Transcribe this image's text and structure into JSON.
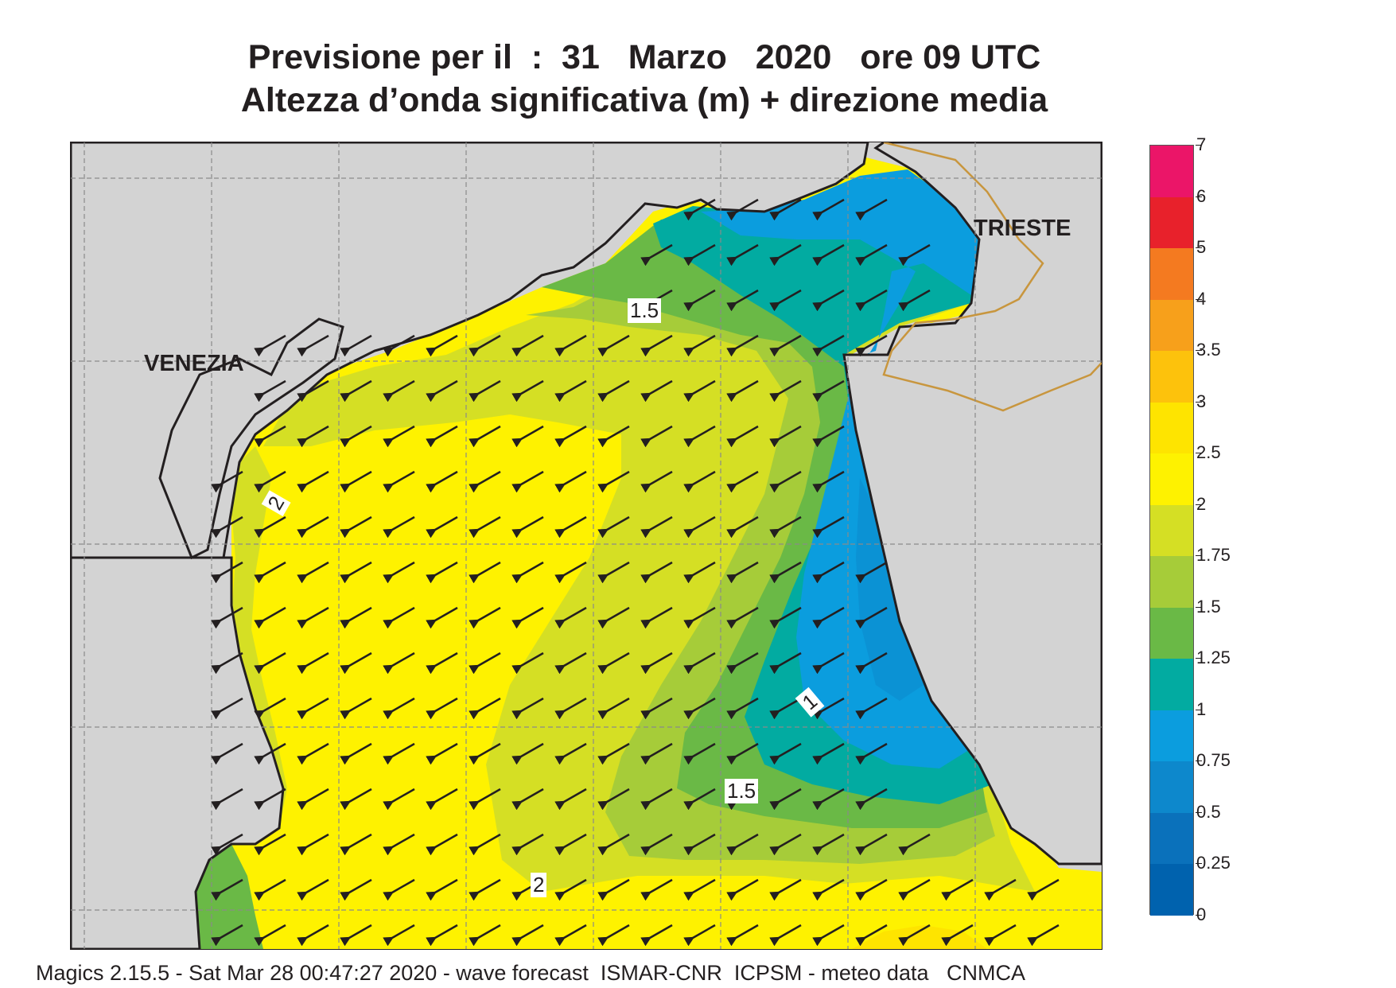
{
  "header": {
    "title_line1": "Previsione per il  :  31   Marzo   2020   ore 09 UTC",
    "title_line2": "Altezza d’onda significativa (m) + direzione media"
  },
  "map": {
    "labels": {
      "venezia": "VENEZIA",
      "trieste": "TRIESTE"
    },
    "contour_labels": [
      "1.5",
      "2",
      "1",
      "1.5",
      "2"
    ],
    "colors": {
      "land": "#d3d3d3",
      "coastline": "#231f20",
      "border": "#c8963e",
      "grid": "#8a8a8a",
      "arrow": "#231f20"
    },
    "wave_direction": "toward south-west"
  },
  "legend": {
    "labels": [
      "7",
      "6",
      "5",
      "4",
      "3.5",
      "3",
      "2.5",
      "2",
      "1.75",
      "1.5",
      "1.25",
      "1",
      "0.75",
      "0.5",
      "0.25",
      "0"
    ],
    "colors": [
      "#eb1568",
      "#e8212b",
      "#f47a20",
      "#f7a01b",
      "#fdc20c",
      "#fee400",
      "#fef200",
      "#d5df24",
      "#a6cc39",
      "#6ab946",
      "#02aba1",
      "#0b9dde",
      "#0d88cc",
      "#0a71bb",
      "#0062ae"
    ]
  },
  "footer": {
    "text": "Magics 2.15.5 - Sat Mar 28 00:47:27 2020 - wave forecast  ISMAR-CNR  ICPSM - meteo data   CNMCA"
  }
}
